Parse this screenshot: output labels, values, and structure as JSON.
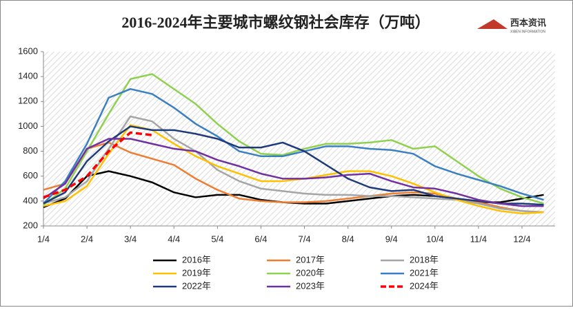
{
  "chart_data": {
    "type": "line",
    "title": "2016-2024年主要城市螺纹钢社会库存（万吨）",
    "logo": {
      "name": "西本资讯",
      "subtitle": "XIBEN INFORMATION"
    },
    "categories": [
      "1/4",
      null,
      "2/4",
      null,
      "3/4",
      null,
      "4/4",
      null,
      "5/4",
      null,
      "6/4",
      null,
      "7/4",
      null,
      "8/4",
      null,
      "9/4",
      null,
      "10/4",
      null,
      "11/4",
      null,
      "12/4",
      null
    ],
    "ylim": [
      200,
      1600
    ],
    "yticks": [
      200,
      400,
      600,
      800,
      1000,
      1200,
      1400,
      1600
    ],
    "series": [
      {
        "name": "2016年",
        "color": "#000000",
        "values": [
          350,
          420,
          600,
          640,
          600,
          550,
          470,
          430,
          450,
          450,
          410,
          390,
          380,
          380,
          400,
          420,
          440,
          450,
          440,
          420,
          390,
          390,
          420,
          450
        ]
      },
      {
        "name": "2017年",
        "color": "#ed7d31",
        "values": [
          490,
          540,
          820,
          870,
          790,
          740,
          690,
          580,
          490,
          420,
          400,
          390,
          390,
          400,
          420,
          440,
          460,
          470,
          460,
          420,
          390,
          350,
          320,
          310
        ]
      },
      {
        "name": "2018年",
        "color": "#a5a5a5",
        "values": [
          380,
          430,
          560,
          820,
          1080,
          1040,
          900,
          800,
          650,
          560,
          500,
          480,
          460,
          450,
          450,
          440,
          440,
          430,
          420,
          410,
          380,
          340,
          320,
          310
        ]
      },
      {
        "name": "2019年",
        "color": "#ffc000",
        "values": [
          360,
          400,
          520,
          780,
          1010,
          970,
          860,
          760,
          680,
          620,
          560,
          560,
          580,
          610,
          640,
          640,
          600,
          540,
          470,
          410,
          360,
          320,
          300,
          310
        ]
      },
      {
        "name": "2020年",
        "color": "#8fd14f",
        "values": [
          370,
          500,
          800,
          1100,
          1380,
          1420,
          1300,
          1180,
          1020,
          880,
          780,
          770,
          820,
          860,
          860,
          870,
          890,
          820,
          840,
          720,
          600,
          500,
          430,
          380
        ]
      },
      {
        "name": "2021年",
        "color": "#3a7fc1",
        "values": [
          380,
          560,
          860,
          1230,
          1300,
          1260,
          1150,
          1020,
          920,
          800,
          760,
          760,
          800,
          840,
          840,
          820,
          810,
          780,
          680,
          620,
          570,
          520,
          460,
          410
        ]
      },
      {
        "name": "2022年",
        "color": "#1f3a7a",
        "values": [
          380,
          470,
          720,
          880,
          1000,
          970,
          970,
          940,
          900,
          830,
          830,
          870,
          800,
          690,
          580,
          510,
          480,
          490,
          440,
          420,
          400,
          380,
          380,
          370
        ]
      },
      {
        "name": "2023年",
        "color": "#7030a0",
        "values": [
          420,
          540,
          820,
          900,
          900,
          860,
          820,
          800,
          730,
          680,
          620,
          580,
          580,
          590,
          610,
          620,
          560,
          510,
          500,
          460,
          410,
          380,
          360,
          360
        ]
      },
      {
        "name": "2024年",
        "color": "#ff0000",
        "dashed": true,
        "values": [
          430,
          490,
          600,
          800,
          950,
          930,
          null,
          null,
          null,
          null,
          null,
          null,
          null,
          null,
          null,
          null,
          null,
          null,
          null,
          null,
          null,
          null,
          null,
          null
        ]
      }
    ]
  }
}
